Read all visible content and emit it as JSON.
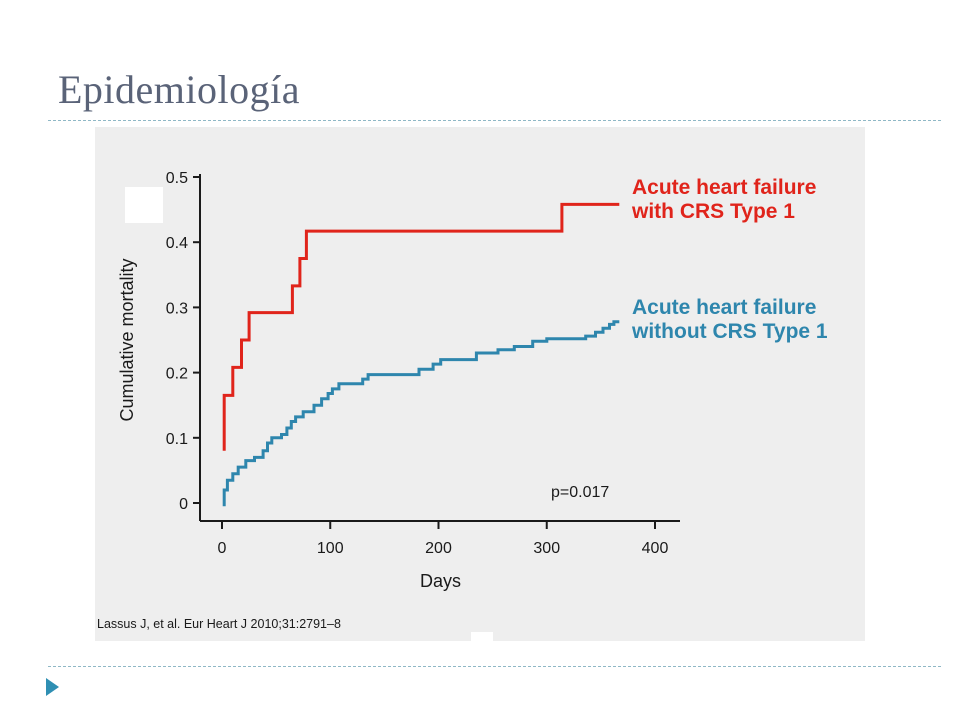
{
  "slide": {
    "title": "Epidemiología"
  },
  "chart_data": {
    "type": "line",
    "step": true,
    "x": {
      "label": "Days",
      "lim": [
        0,
        400
      ],
      "ticks": [
        0,
        100,
        200,
        300,
        400
      ]
    },
    "y": {
      "label": "Cumulative mortality",
      "lim": [
        0,
        0.5
      ],
      "ticks": [
        "0",
        "0.1",
        "0.2",
        "0.3",
        "0.4",
        "0.5"
      ]
    },
    "series": [
      {
        "name": "Acute heart failure with CRS Type 1",
        "label_lines": [
          "Acute heart failure",
          "with CRS Type 1"
        ],
        "color": "#e0241b",
        "points": [
          [
            2,
            0.08
          ],
          [
            2,
            0.165
          ],
          [
            10,
            0.165
          ],
          [
            10,
            0.208
          ],
          [
            18,
            0.208
          ],
          [
            18,
            0.25
          ],
          [
            25,
            0.25
          ],
          [
            25,
            0.292
          ],
          [
            65,
            0.292
          ],
          [
            65,
            0.333
          ],
          [
            72,
            0.333
          ],
          [
            72,
            0.375
          ],
          [
            78,
            0.375
          ],
          [
            78,
            0.417
          ],
          [
            314,
            0.417
          ],
          [
            314,
            0.458
          ],
          [
            367,
            0.458
          ]
        ]
      },
      {
        "name": "Acute heart failure without CRS Type 1",
        "label_lines": [
          "Acute heart failure",
          "without CRS Type 1"
        ],
        "color": "#2e86ad",
        "points": [
          [
            2,
            -0.005
          ],
          [
            2,
            0.02
          ],
          [
            5,
            0.02
          ],
          [
            5,
            0.035
          ],
          [
            10,
            0.035
          ],
          [
            10,
            0.045
          ],
          [
            15,
            0.045
          ],
          [
            15,
            0.055
          ],
          [
            22,
            0.055
          ],
          [
            22,
            0.065
          ],
          [
            30,
            0.065
          ],
          [
            30,
            0.07
          ],
          [
            38,
            0.07
          ],
          [
            38,
            0.08
          ],
          [
            42,
            0.08
          ],
          [
            42,
            0.092
          ],
          [
            46,
            0.092
          ],
          [
            46,
            0.1
          ],
          [
            55,
            0.1
          ],
          [
            55,
            0.105
          ],
          [
            60,
            0.105
          ],
          [
            60,
            0.115
          ],
          [
            64,
            0.115
          ],
          [
            64,
            0.125
          ],
          [
            68,
            0.125
          ],
          [
            68,
            0.132
          ],
          [
            75,
            0.132
          ],
          [
            75,
            0.14
          ],
          [
            85,
            0.14
          ],
          [
            85,
            0.15
          ],
          [
            92,
            0.15
          ],
          [
            92,
            0.16
          ],
          [
            98,
            0.16
          ],
          [
            98,
            0.168
          ],
          [
            102,
            0.168
          ],
          [
            102,
            0.175
          ],
          [
            108,
            0.175
          ],
          [
            108,
            0.183
          ],
          [
            130,
            0.183
          ],
          [
            130,
            0.19
          ],
          [
            135,
            0.19
          ],
          [
            135,
            0.197
          ],
          [
            182,
            0.197
          ],
          [
            182,
            0.205
          ],
          [
            195,
            0.205
          ],
          [
            195,
            0.213
          ],
          [
            202,
            0.213
          ],
          [
            202,
            0.22
          ],
          [
            235,
            0.22
          ],
          [
            235,
            0.23
          ],
          [
            255,
            0.23
          ],
          [
            255,
            0.235
          ],
          [
            270,
            0.235
          ],
          [
            270,
            0.24
          ],
          [
            287,
            0.24
          ],
          [
            287,
            0.248
          ],
          [
            300,
            0.248
          ],
          [
            300,
            0.252
          ],
          [
            336,
            0.252
          ],
          [
            336,
            0.256
          ],
          [
            345,
            0.256
          ],
          [
            345,
            0.262
          ],
          [
            352,
            0.262
          ],
          [
            352,
            0.268
          ],
          [
            358,
            0.268
          ],
          [
            358,
            0.274
          ],
          [
            362,
            0.274
          ],
          [
            362,
            0.278
          ],
          [
            367,
            0.278
          ]
        ]
      }
    ],
    "annotations": [
      "p=0.017"
    ],
    "source": "Lassus J, et al. Eur Heart J 2010;31:2791–8",
    "grid": false,
    "legend": "right"
  }
}
